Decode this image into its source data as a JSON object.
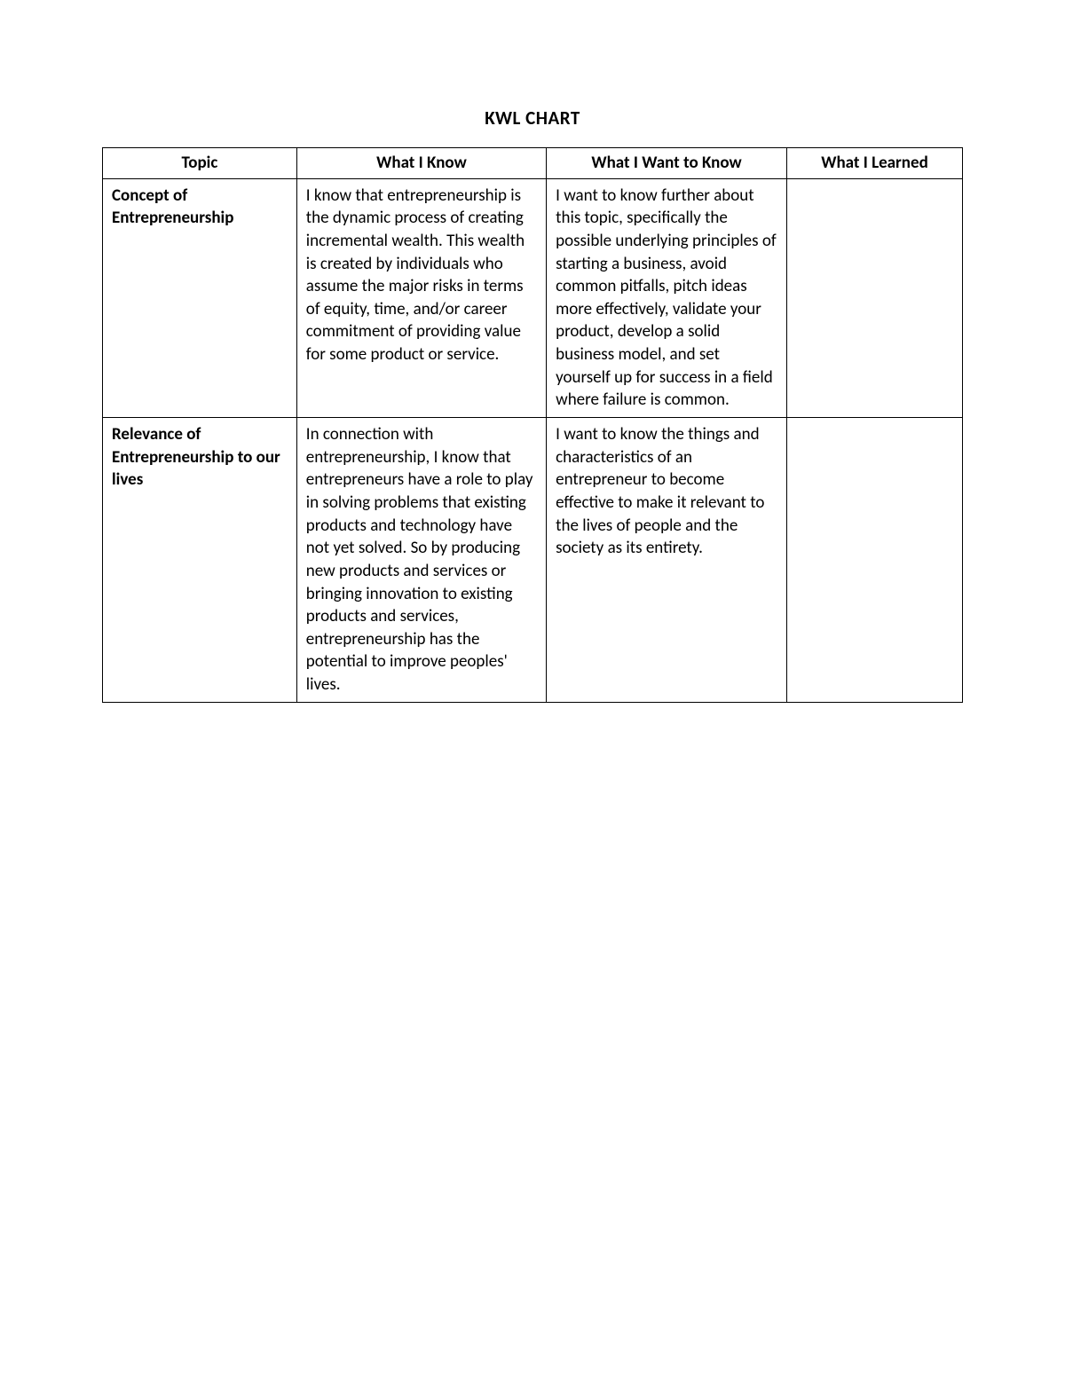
{
  "title": "KWL CHART",
  "columns": {
    "topic": "Topic",
    "know": "What I Know",
    "want": "What I Want to Know",
    "learned": "What I Learned"
  },
  "rows": [
    {
      "topic": "Concept of Entrepreneurship",
      "know": "I know that entrepreneurship is the dynamic process of creating incremental wealth. This wealth is created by individuals who assume the major risks in terms of equity, time, and/or career commitment of providing value for some product or service.",
      "want": "I want to know further about this topic, specifically the possible underlying principles of starting a business, avoid common pitfalls, pitch ideas more effectively, validate your product, develop a solid business model, and set yourself up for success in a field where failure is common.",
      "learned": ""
    },
    {
      "topic": "Relevance of Entrepreneurship to our lives",
      "know": "In connection with entrepreneurship, I know that entrepreneurs have a role to play in solving problems that existing products and technology have not yet solved. So by producing new products and services or bringing innovation to existing products and services, entrepreneurship has the potential to improve peoples' lives.",
      "want": "I want to know the things and characteristics of an entrepreneur to become effective to make it relevant to the lives of people and the society as its entirety.",
      "learned": ""
    }
  ]
}
